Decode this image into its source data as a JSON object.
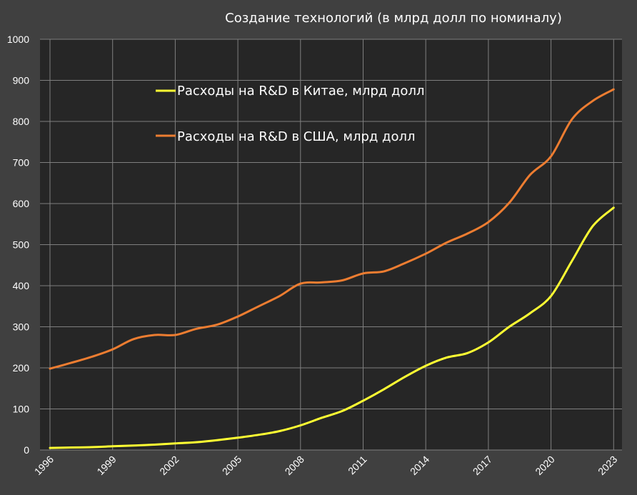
{
  "chart_data": {
    "type": "line",
    "title": "Создание технологий (в млрд долл по номиналу)",
    "xlabel": "",
    "ylabel": "",
    "ylim": [
      0,
      1000
    ],
    "xlim": [
      1996,
      2023
    ],
    "y_ticks": [
      0,
      100,
      200,
      300,
      400,
      500,
      600,
      700,
      800,
      900,
      1000
    ],
    "x_tick_labels": [
      "1996",
      "1999",
      "2002",
      "2005",
      "2008",
      "2011",
      "2014",
      "2017",
      "2020",
      "2023"
    ],
    "grid": true,
    "legend_position": "top-left-inside",
    "x": [
      1996,
      1997,
      1998,
      1999,
      2000,
      2001,
      2002,
      2003,
      2004,
      2005,
      2006,
      2007,
      2008,
      2009,
      2010,
      2011,
      2012,
      2013,
      2014,
      2015,
      2016,
      2017,
      2018,
      2019,
      2020,
      2021,
      2022,
      2023
    ],
    "series": [
      {
        "name": "Расходы на R&D в Китае, млрд долл",
        "color": "#ffff33",
        "values": [
          5,
          6,
          7,
          9,
          11,
          13,
          16,
          19,
          24,
          30,
          37,
          46,
          60,
          78,
          95,
          120,
          148,
          178,
          205,
          225,
          236,
          262,
          300,
          333,
          375,
          460,
          545,
          590
        ]
      },
      {
        "name": "Расходы на R&D в США, млрд долл",
        "color": "#ed7d31",
        "values": [
          198,
          212,
          227,
          245,
          270,
          280,
          280,
          295,
          305,
          325,
          350,
          375,
          405,
          408,
          413,
          430,
          435,
          455,
          478,
          505,
          527,
          555,
          602,
          670,
          715,
          805,
          850,
          878
        ]
      }
    ]
  },
  "colors": {
    "background": "#404040",
    "plot_area": "#262626",
    "gridline": "#7f7f7f"
  }
}
